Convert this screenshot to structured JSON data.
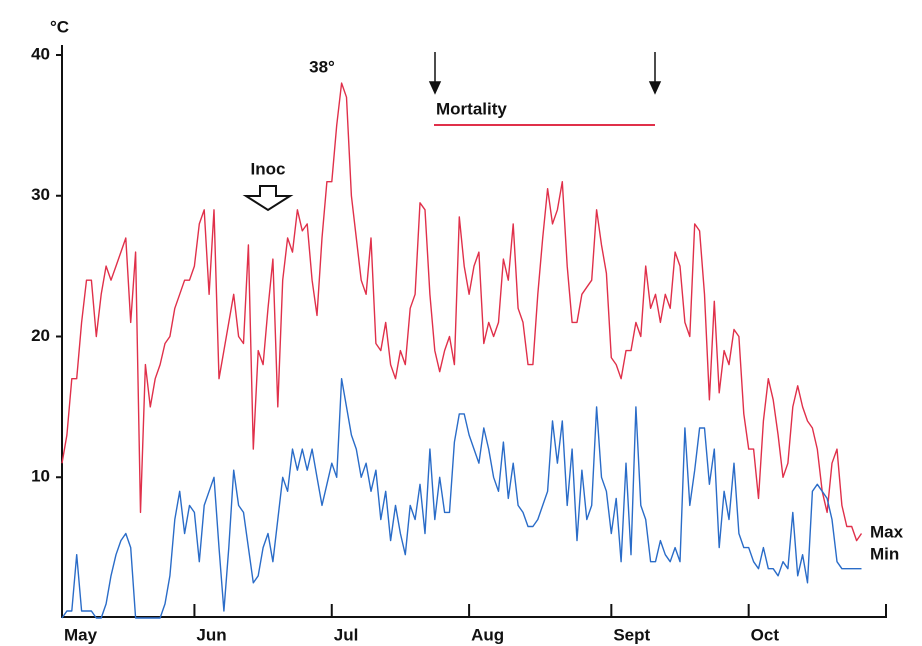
{
  "chart_data": {
    "type": "line",
    "y_label": "°C",
    "annotations": {
      "peak": "38°",
      "inoc": "Inoc",
      "mortality": "Mortality"
    },
    "x": [
      0,
      1,
      2,
      3,
      4,
      5,
      6,
      7,
      8,
      9,
      10,
      11,
      12,
      13,
      14,
      15,
      16,
      17,
      18,
      19,
      20,
      21,
      22,
      23,
      24,
      25,
      26,
      27,
      28,
      29,
      30,
      31,
      32,
      33,
      34,
      35,
      36,
      37,
      38,
      39,
      40,
      41,
      42,
      43,
      44,
      45,
      46,
      47,
      48,
      49,
      50,
      51,
      52,
      53,
      54,
      55,
      56,
      57,
      58,
      59,
      60,
      61,
      62,
      63,
      64,
      65,
      66,
      67,
      68,
      69,
      70,
      71,
      72,
      73,
      74,
      75,
      76,
      77,
      78,
      79,
      80,
      81,
      82,
      83,
      84,
      85,
      86,
      87,
      88,
      89,
      90,
      91,
      92,
      93,
      94,
      95,
      96,
      97,
      98,
      99,
      100,
      101,
      102,
      103,
      104,
      105,
      106,
      107,
      108,
      109,
      110,
      111,
      112,
      113,
      114,
      115,
      116,
      117,
      118,
      119,
      120,
      121,
      122,
      123,
      124,
      125,
      126,
      127,
      128,
      129,
      130,
      131,
      132,
      133,
      134,
      135,
      136,
      137,
      138,
      139,
      140,
      141,
      142,
      143,
      144,
      145,
      146,
      147,
      148,
      149,
      150,
      151,
      152,
      153,
      154,
      155,
      156,
      157,
      158,
      159,
      160,
      161,
      162,
      163
    ],
    "series": [
      {
        "name": "Max",
        "color": "#e0304a",
        "values": [
          11,
          13,
          17,
          17,
          21,
          24,
          24,
          20,
          23,
          25,
          24,
          25,
          26,
          27,
          21,
          26,
          7.5,
          18,
          15,
          17,
          18,
          19.5,
          20,
          22,
          23,
          24,
          24,
          25,
          28,
          29,
          23,
          29,
          17,
          19,
          21,
          23,
          20,
          19.5,
          26.5,
          12,
          19,
          18,
          22,
          25.5,
          15,
          24,
          27,
          26,
          29,
          27.5,
          28,
          24,
          21.5,
          27,
          31,
          31,
          35,
          38,
          37,
          30,
          27,
          24,
          23,
          27,
          19.5,
          19,
          21,
          18,
          17,
          19,
          18,
          22,
          23,
          29.5,
          29,
          23,
          19,
          17.5,
          19,
          20,
          18,
          28.5,
          25,
          23,
          25,
          26,
          19.5,
          21,
          20,
          21,
          25.5,
          24,
          28,
          22,
          21,
          18,
          18,
          23,
          27,
          30.5,
          28,
          29,
          31,
          25,
          21,
          21,
          23,
          23.5,
          24,
          29,
          26.5,
          24.5,
          18.5,
          18,
          17,
          19,
          19,
          21,
          20,
          25,
          22,
          23,
          21,
          23,
          22,
          26,
          25,
          21,
          20,
          28,
          27.5,
          23,
          15.5,
          22.5,
          16,
          19,
          18,
          20.5,
          20,
          14.5,
          12,
          12,
          8.5,
          14,
          17,
          15.5,
          13,
          10,
          11,
          15,
          16.5,
          15,
          14,
          13.5,
          12,
          9,
          7.5,
          11,
          12,
          8,
          6.5,
          6.5,
          5.5,
          6
        ]
      },
      {
        "name": "Min",
        "color": "#2a6cc8",
        "values": [
          0,
          0.5,
          0.5,
          4.5,
          0.5,
          0.5,
          0.5,
          0,
          0,
          1,
          3,
          4.5,
          5.5,
          6,
          5,
          0,
          0,
          0,
          0,
          0,
          0,
          1,
          3,
          7,
          9,
          6,
          8,
          7.5,
          4,
          8,
          9,
          10,
          5,
          0.5,
          5,
          10.5,
          8,
          7.5,
          5,
          2.5,
          3,
          5,
          6,
          4,
          7,
          10,
          9,
          12,
          10.5,
          12,
          10.5,
          12,
          10,
          8,
          9.5,
          11,
          10,
          17,
          15,
          13,
          12,
          10,
          11,
          9,
          10.5,
          7,
          9,
          5.5,
          8,
          6,
          4.5,
          8,
          7,
          9.5,
          6,
          12,
          7,
          10,
          7.5,
          7.5,
          12.5,
          14.5,
          14.5,
          13,
          12,
          11,
          13.5,
          12,
          10,
          9,
          12.5,
          8.5,
          11,
          8,
          7.5,
          6.5,
          6.5,
          7,
          8,
          9,
          14,
          11,
          14,
          8,
          12,
          5.5,
          10.5,
          7,
          8,
          15,
          10,
          9,
          6,
          8.5,
          4,
          11,
          4.5,
          15,
          8,
          7,
          4,
          4,
          5.5,
          4.5,
          4,
          5,
          4,
          13.5,
          8,
          10.5,
          13.5,
          13.5,
          9.5,
          12,
          5,
          9,
          7,
          11,
          6,
          5,
          5,
          4,
          3.5,
          5,
          3.5,
          3.5,
          3,
          4,
          3.5,
          7.5,
          3,
          4.5,
          2.5,
          9,
          9.5,
          9,
          8.5,
          7,
          4,
          3.5,
          3.5,
          3.5,
          3.5,
          3.5
        ]
      }
    ],
    "xlim": [
      0,
      168
    ],
    "xticks": [
      {
        "value": 0,
        "label": "May"
      },
      {
        "value": 27,
        "label": "Jun"
      },
      {
        "value": 55,
        "label": "Jul"
      },
      {
        "value": 83,
        "label": "Aug"
      },
      {
        "value": 112,
        "label": "Sept"
      },
      {
        "value": 140,
        "label": "Oct"
      },
      168
    ],
    "ylim": [
      0,
      40
    ],
    "yticks": [
      10,
      20,
      30,
      40
    ],
    "grid": false
  }
}
